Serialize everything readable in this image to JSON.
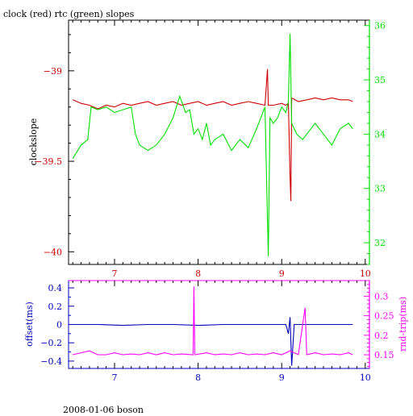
{
  "title": "clock (red) rtc (green) slopes",
  "footer": "2008-01-06 boson",
  "colors": {
    "red": "#cc0000",
    "green": "#00e000",
    "blue": "#0000bb",
    "magenta": "#ff00ff",
    "axis": "#000000"
  },
  "chart_data": [
    {
      "type": "line",
      "ylabel": "clockslope",
      "y2label": "",
      "xlim": [
        6.45,
        10.05
      ],
      "ylim": [
        -40.07,
        -38.72
      ],
      "y2lim": [
        31.6,
        36.1
      ],
      "x_ticks": [
        "7",
        "8",
        "9",
        "10"
      ],
      "y_ticks": [
        "-39",
        "-39.5",
        "-40"
      ],
      "y2_ticks": [
        "32",
        "33",
        "34",
        "35",
        "36"
      ],
      "series": [
        {
          "name": "clock (red)",
          "axis": "left",
          "points": [
            [
              6.5,
              -39.16
            ],
            [
              6.6,
              -39.18
            ],
            [
              6.7,
              -39.19
            ],
            [
              6.8,
              -39.21
            ],
            [
              6.9,
              -39.19
            ],
            [
              7.0,
              -39.2
            ],
            [
              7.1,
              -39.18
            ],
            [
              7.2,
              -39.19
            ],
            [
              7.3,
              -39.18
            ],
            [
              7.4,
              -39.17
            ],
            [
              7.5,
              -39.19
            ],
            [
              7.6,
              -39.18
            ],
            [
              7.7,
              -39.17
            ],
            [
              7.8,
              -39.19
            ],
            [
              7.9,
              -39.18
            ],
            [
              8.0,
              -39.17
            ],
            [
              8.1,
              -39.19
            ],
            [
              8.2,
              -39.18
            ],
            [
              8.3,
              -39.17
            ],
            [
              8.4,
              -39.19
            ],
            [
              8.5,
              -39.18
            ],
            [
              8.6,
              -39.17
            ],
            [
              8.7,
              -39.18
            ],
            [
              8.8,
              -39.19
            ],
            [
              8.83,
              -38.99
            ],
            [
              8.84,
              -39.19
            ],
            [
              8.9,
              -39.19
            ],
            [
              9.0,
              -39.18
            ],
            [
              9.05,
              -39.19
            ],
            [
              9.08,
              -39.18
            ],
            [
              9.1,
              -39.59
            ],
            [
              9.11,
              -39.72
            ],
            [
              9.12,
              -39.15
            ],
            [
              9.2,
              -39.17
            ],
            [
              9.3,
              -39.16
            ],
            [
              9.4,
              -39.15
            ],
            [
              9.5,
              -39.16
            ],
            [
              9.6,
              -39.15
            ],
            [
              9.7,
              -39.16
            ],
            [
              9.8,
              -39.16
            ],
            [
              9.85,
              -39.17
            ]
          ]
        },
        {
          "name": "rtc (green)",
          "axis": "right",
          "points": [
            [
              6.5,
              33.55
            ],
            [
              6.6,
              33.8
            ],
            [
              6.68,
              33.9
            ],
            [
              6.72,
              34.5
            ],
            [
              6.8,
              34.45
            ],
            [
              6.9,
              34.5
            ],
            [
              7.0,
              34.4
            ],
            [
              7.1,
              34.45
            ],
            [
              7.2,
              34.5
            ],
            [
              7.25,
              34.0
            ],
            [
              7.3,
              33.8
            ],
            [
              7.4,
              33.7
            ],
            [
              7.5,
              33.8
            ],
            [
              7.6,
              34.0
            ],
            [
              7.7,
              34.3
            ],
            [
              7.78,
              34.7
            ],
            [
              7.85,
              34.4
            ],
            [
              7.9,
              34.45
            ],
            [
              7.95,
              34.0
            ],
            [
              8.0,
              34.1
            ],
            [
              8.05,
              33.9
            ],
            [
              8.1,
              34.2
            ],
            [
              8.15,
              33.8
            ],
            [
              8.2,
              33.9
            ],
            [
              8.3,
              34.0
            ],
            [
              8.4,
              33.7
            ],
            [
              8.5,
              33.9
            ],
            [
              8.6,
              33.75
            ],
            [
              8.7,
              34.1
            ],
            [
              8.75,
              34.3
            ],
            [
              8.8,
              34.5
            ],
            [
              8.84,
              31.75
            ],
            [
              8.86,
              34.3
            ],
            [
              8.9,
              34.2
            ],
            [
              8.95,
              34.3
            ],
            [
              9.0,
              34.5
            ],
            [
              9.05,
              34.4
            ],
            [
              9.08,
              34.6
            ],
            [
              9.1,
              35.85
            ],
            [
              9.12,
              34.2
            ],
            [
              9.18,
              34.0
            ],
            [
              9.25,
              33.9
            ],
            [
              9.3,
              34.0
            ],
            [
              9.4,
              34.2
            ],
            [
              9.5,
              34.0
            ],
            [
              9.6,
              33.8
            ],
            [
              9.7,
              34.1
            ],
            [
              9.8,
              34.2
            ],
            [
              9.85,
              34.1
            ]
          ]
        }
      ]
    },
    {
      "type": "line",
      "ylabel": "offset(ms)",
      "y2label": "rnd-trip(ms)",
      "xlim": [
        6.45,
        10.05
      ],
      "ylim": [
        -0.48,
        0.48
      ],
      "y2lim": [
        0.115,
        0.34
      ],
      "x_ticks": [
        "7",
        "8",
        "9",
        "10"
      ],
      "y_ticks": [
        "0.4",
        "0.2",
        "0",
        "-0.2",
        "-0.4"
      ],
      "y2_ticks": [
        "0.3",
        "0.25",
        "0.2",
        "0.15"
      ],
      "series": [
        {
          "name": "offset",
          "axis": "left",
          "points": [
            [
              6.5,
              0.0
            ],
            [
              6.8,
              0.0
            ],
            [
              7.1,
              -0.01
            ],
            [
              7.4,
              0.0
            ],
            [
              7.7,
              0.0
            ],
            [
              8.0,
              -0.01
            ],
            [
              8.3,
              0.0
            ],
            [
              8.6,
              0.0
            ],
            [
              8.9,
              0.0
            ],
            [
              9.05,
              0.0
            ],
            [
              9.08,
              -0.1
            ],
            [
              9.1,
              0.08
            ],
            [
              9.12,
              -0.45
            ],
            [
              9.15,
              0.0
            ],
            [
              9.4,
              0.0
            ],
            [
              9.7,
              0.0
            ],
            [
              9.85,
              0.0
            ]
          ]
        },
        {
          "name": "rnd-trip",
          "axis": "right",
          "points": [
            [
              6.5,
              0.15
            ],
            [
              6.6,
              0.155
            ],
            [
              6.7,
              0.16
            ],
            [
              6.8,
              0.15
            ],
            [
              6.9,
              0.15
            ],
            [
              7.0,
              0.155
            ],
            [
              7.1,
              0.15
            ],
            [
              7.2,
              0.152
            ],
            [
              7.3,
              0.15
            ],
            [
              7.4,
              0.155
            ],
            [
              7.5,
              0.15
            ],
            [
              7.6,
              0.155
            ],
            [
              7.7,
              0.15
            ],
            [
              7.8,
              0.152
            ],
            [
              7.94,
              0.15
            ],
            [
              7.95,
              0.325
            ],
            [
              7.96,
              0.15
            ],
            [
              8.1,
              0.155
            ],
            [
              8.2,
              0.15
            ],
            [
              8.3,
              0.152
            ],
            [
              8.4,
              0.15
            ],
            [
              8.5,
              0.155
            ],
            [
              8.6,
              0.15
            ],
            [
              8.7,
              0.152
            ],
            [
              8.8,
              0.15
            ],
            [
              8.9,
              0.155
            ],
            [
              9.0,
              0.15
            ],
            [
              9.1,
              0.16
            ],
            [
              9.2,
              0.15
            ],
            [
              9.28,
              0.27
            ],
            [
              9.3,
              0.15
            ],
            [
              9.4,
              0.155
            ],
            [
              9.5,
              0.15
            ],
            [
              9.6,
              0.152
            ],
            [
              9.7,
              0.15
            ],
            [
              9.8,
              0.155
            ],
            [
              9.85,
              0.15
            ]
          ]
        }
      ]
    }
  ]
}
